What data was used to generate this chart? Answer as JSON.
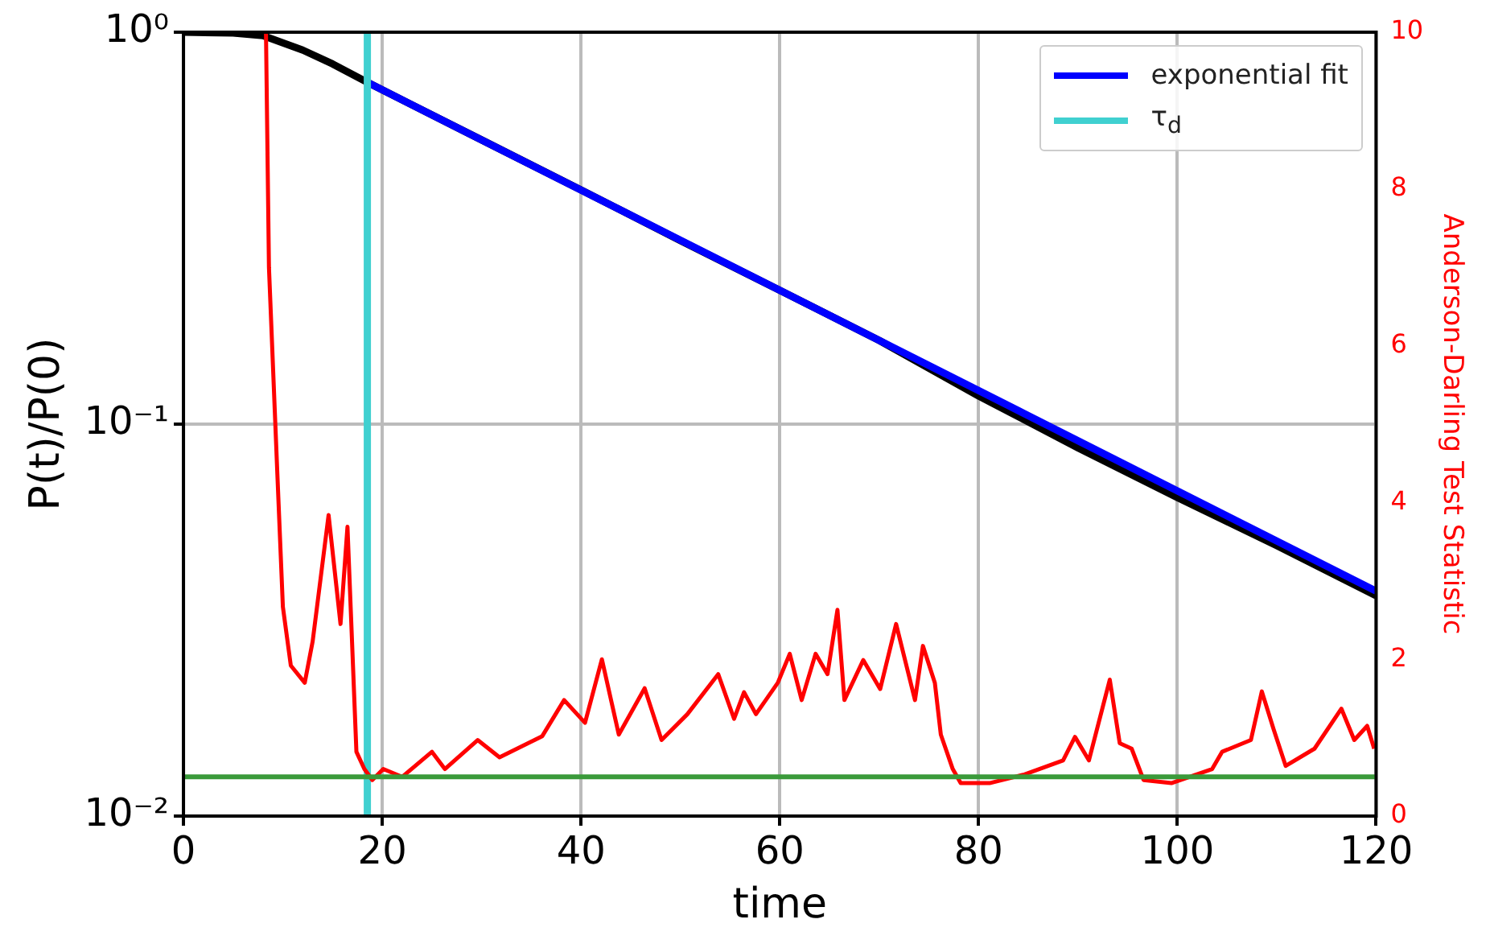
{
  "chart_data": {
    "type": "line",
    "xlabel": "time",
    "ylabel": "P(t)/P(0)",
    "y2label": "Anderson-Darling Test Statistic",
    "xlim": [
      0,
      120
    ],
    "xticks": [
      0,
      20,
      40,
      60,
      80,
      100,
      120
    ],
    "ylim": [
      0.01,
      1
    ],
    "yticks": [
      {
        "value": 0.01,
        "label": "10⁻²"
      },
      {
        "value": 0.1,
        "label": "10⁻¹"
      },
      {
        "value": 1,
        "label": "10⁰"
      }
    ],
    "y2lim": [
      0,
      10
    ],
    "y2ticks": [
      0,
      2,
      4,
      6,
      8,
      10
    ],
    "log": "y",
    "grid": true,
    "legend": "top right",
    "marker": "none",
    "series": [
      {
        "color": "#000000",
        "x": [
          0,
          5,
          8,
          12,
          15,
          18.5,
          30,
          40,
          50,
          60,
          70,
          80,
          90,
          100,
          110,
          120
        ],
        "values": [
          1,
          0.995,
          0.98,
          0.9,
          0.83,
          0.745,
          0.531,
          0.396,
          0.294,
          0.2195,
          0.1635,
          0.118,
          0.087,
          0.065,
          0.049,
          0.0365
        ]
      },
      {
        "name": "exponential fit",
        "color": "#0000ff",
        "x": [
          18.5,
          120
        ],
        "values": [
          0.745,
          0.0375
        ]
      },
      {
        "name": "τ$_{d}$",
        "color": "#40d0d0",
        "x": [
          18.5,
          18.5
        ],
        "values": [
          0.01,
          1
        ]
      },
      {
        "color": "#ff0000",
        "axis": "y2",
        "x": [
          8.3,
          8.6,
          9.45,
          10.0,
          10.8,
          12.2,
          13.0,
          14.6,
          15.8,
          16.5,
          17.4,
          18.2,
          19.0,
          20.1,
          22.0,
          25.0,
          26.3,
          29.6,
          31.8,
          36.1,
          38.3,
          40.4,
          42.1,
          43.8,
          46.4,
          48.1,
          50.7,
          53.8,
          55.4,
          56.4,
          57.6,
          59.8,
          61.0,
          62.2,
          63.6,
          64.8,
          65.8,
          66.5,
          68.4,
          70.1,
          71.7,
          73.6,
          74.4,
          75.6,
          76.2,
          77.4,
          78.2,
          81.1,
          84.6,
          88.5,
          89.7,
          91.1,
          93.2,
          94.2,
          95.4,
          96.6,
          99.4,
          103.5,
          104.5,
          107.4,
          108.5,
          109.7,
          110.9,
          113.8,
          116.5,
          117.8,
          119.1,
          119.8
        ],
        "values": [
          10,
          7.0,
          4.35,
          2.67,
          1.92,
          1.7,
          2.23,
          3.84,
          2.45,
          3.69,
          0.82,
          0.6,
          0.46,
          0.6,
          0.5,
          0.82,
          0.6,
          0.97,
          0.75,
          1.02,
          1.48,
          1.19,
          2.0,
          1.04,
          1.63,
          0.97,
          1.3,
          1.81,
          1.24,
          1.58,
          1.3,
          1.7,
          2.07,
          1.48,
          2.07,
          1.81,
          2.63,
          1.48,
          1.99,
          1.62,
          2.45,
          1.48,
          2.17,
          1.7,
          1.04,
          0.6,
          0.42,
          0.42,
          0.53,
          0.71,
          1.01,
          0.71,
          1.74,
          0.93,
          0.86,
          0.46,
          0.42,
          0.6,
          0.82,
          0.97,
          1.59,
          1.1,
          0.64,
          0.86,
          1.37,
          0.97,
          1.15,
          0.86
        ]
      }
    ],
    "ref_lines": [
      {
        "axis": "y2",
        "value": 0.5,
        "color": "#3a9a3a"
      }
    ]
  }
}
